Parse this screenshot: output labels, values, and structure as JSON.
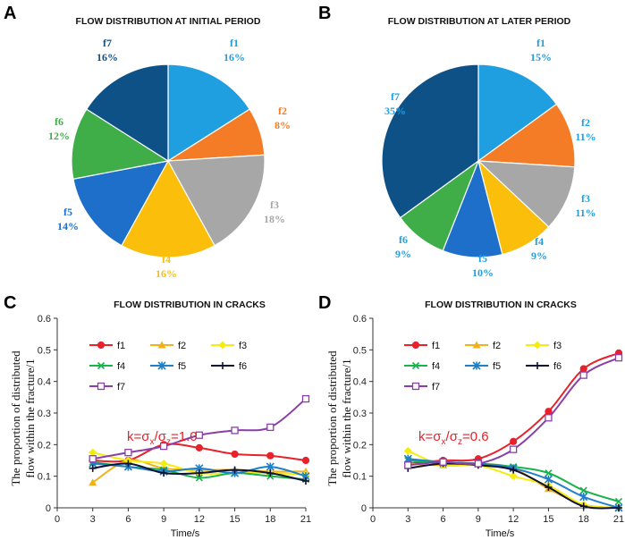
{
  "colors": {
    "f1": "#1f9ee0",
    "f2": "#f47c26",
    "f3": "#a7a7a7",
    "f4": "#fbbe0a",
    "f5": "#1d6fc9",
    "f6": "#3fae49",
    "f7": "#0d5187"
  },
  "line_colors": {
    "f1": "#e8212b",
    "f2": "#f2b01a",
    "f3": "#f5ec0f",
    "f4": "#19b24b",
    "f5": "#1f7fc9",
    "f6": "#111133",
    "f7": "#8a3fa8"
  },
  "panels": {
    "A": {
      "letter": "A"
    },
    "B": {
      "letter": "B"
    },
    "C": {
      "letter": "C",
      "annotation": {
        "base": "k=σ",
        "sub_x": "x",
        "slash": "/σ",
        "sub_z": "z",
        "value": "=1.0"
      }
    },
    "D": {
      "letter": "D",
      "annotation": {
        "base": "k=σ",
        "sub_x": "x",
        "slash": "/σ",
        "sub_z": "z",
        "value": "=0.6"
      }
    }
  },
  "chart_data": [
    {
      "type": "pie",
      "title": "FLOW DISTRIBUTION  AT INITIAL PERIOD",
      "labels": [
        "f1",
        "f2",
        "f3",
        "f4",
        "f5",
        "f6",
        "f7"
      ],
      "values": [
        16,
        8,
        18,
        16,
        14,
        12,
        16
      ],
      "value_labels": [
        "16%",
        "8%",
        "18%",
        "16%",
        "14%",
        "12%",
        "16%"
      ]
    },
    {
      "type": "pie",
      "title": "FLOW DISTRIBUTION  AT LATER PERIOD",
      "labels": [
        "f1",
        "f2",
        "f3",
        "f4",
        "f5",
        "f6",
        "f7"
      ],
      "values": [
        15,
        11,
        11,
        9,
        10,
        9,
        35
      ],
      "value_labels": [
        "15%",
        "11%",
        "11%",
        "9%",
        "10%",
        "9%",
        "35%"
      ]
    },
    {
      "type": "line",
      "title": "FLOW DISTRIBUTION IN CRACKS",
      "xlabel": "Time/s",
      "ylabel_lines": [
        "The proportion of distributed",
        "flow within the fracture/1"
      ],
      "x": [
        3,
        6,
        9,
        12,
        15,
        18,
        21
      ],
      "xticks": [
        0,
        3,
        6,
        9,
        12,
        15,
        18,
        21
      ],
      "yticks": [
        0,
        0.1,
        0.2,
        0.3,
        0.4,
        0.5,
        0.6
      ],
      "xlim": [
        0,
        21
      ],
      "ylim": [
        0,
        0.6
      ],
      "series": [
        {
          "name": "f1",
          "values": [
            0.15,
            0.15,
            0.2,
            0.19,
            0.17,
            0.165,
            0.15
          ]
        },
        {
          "name": "f2",
          "values": [
            0.08,
            0.15,
            0.125,
            0.12,
            0.12,
            0.115,
            0.115
          ]
        },
        {
          "name": "f3",
          "values": [
            0.175,
            0.15,
            0.14,
            0.11,
            0.11,
            0.11,
            0.105
          ]
        },
        {
          "name": "f4",
          "values": [
            0.145,
            0.13,
            0.12,
            0.095,
            0.11,
            0.1,
            0.09
          ]
        },
        {
          "name": "f5",
          "values": [
            0.14,
            0.13,
            0.115,
            0.125,
            0.11,
            0.13,
            0.1
          ]
        },
        {
          "name": "f6",
          "values": [
            0.125,
            0.14,
            0.11,
            0.11,
            0.12,
            0.11,
            0.085
          ]
        },
        {
          "name": "f7",
          "values": [
            0.155,
            0.175,
            0.195,
            0.23,
            0.245,
            0.255,
            0.345
          ]
        }
      ]
    },
    {
      "type": "line",
      "title": "FLOW DISTRIBUTION IN CRACKS",
      "xlabel": "Time/s",
      "ylabel_lines": [
        "The proportion of distributed",
        "flow within the fracture/1"
      ],
      "x": [
        3,
        6,
        9,
        12,
        15,
        18,
        21
      ],
      "xticks": [
        0,
        3,
        6,
        9,
        12,
        15,
        18,
        21
      ],
      "yticks": [
        0,
        0.1,
        0.2,
        0.3,
        0.4,
        0.5,
        0.6
      ],
      "xlim": [
        0,
        21
      ],
      "ylim": [
        0,
        0.6
      ],
      "series": [
        {
          "name": "f1",
          "values": [
            0.14,
            0.15,
            0.155,
            0.21,
            0.305,
            0.44,
            0.49
          ]
        },
        {
          "name": "f2",
          "values": [
            0.14,
            0.135,
            0.14,
            0.125,
            0.06,
            0.01,
            0.0
          ]
        },
        {
          "name": "f3",
          "values": [
            0.18,
            0.135,
            0.135,
            0.1,
            0.07,
            0.01,
            0.0
          ]
        },
        {
          "name": "f4",
          "values": [
            0.15,
            0.14,
            0.14,
            0.13,
            0.11,
            0.055,
            0.02
          ]
        },
        {
          "name": "f5",
          "values": [
            0.155,
            0.145,
            0.14,
            0.125,
            0.09,
            0.035,
            0.0
          ]
        },
        {
          "name": "f6",
          "values": [
            0.125,
            0.14,
            0.135,
            0.12,
            0.065,
            0.005,
            0.0
          ]
        },
        {
          "name": "f7",
          "values": [
            0.135,
            0.145,
            0.14,
            0.185,
            0.285,
            0.42,
            0.475
          ]
        }
      ]
    }
  ]
}
